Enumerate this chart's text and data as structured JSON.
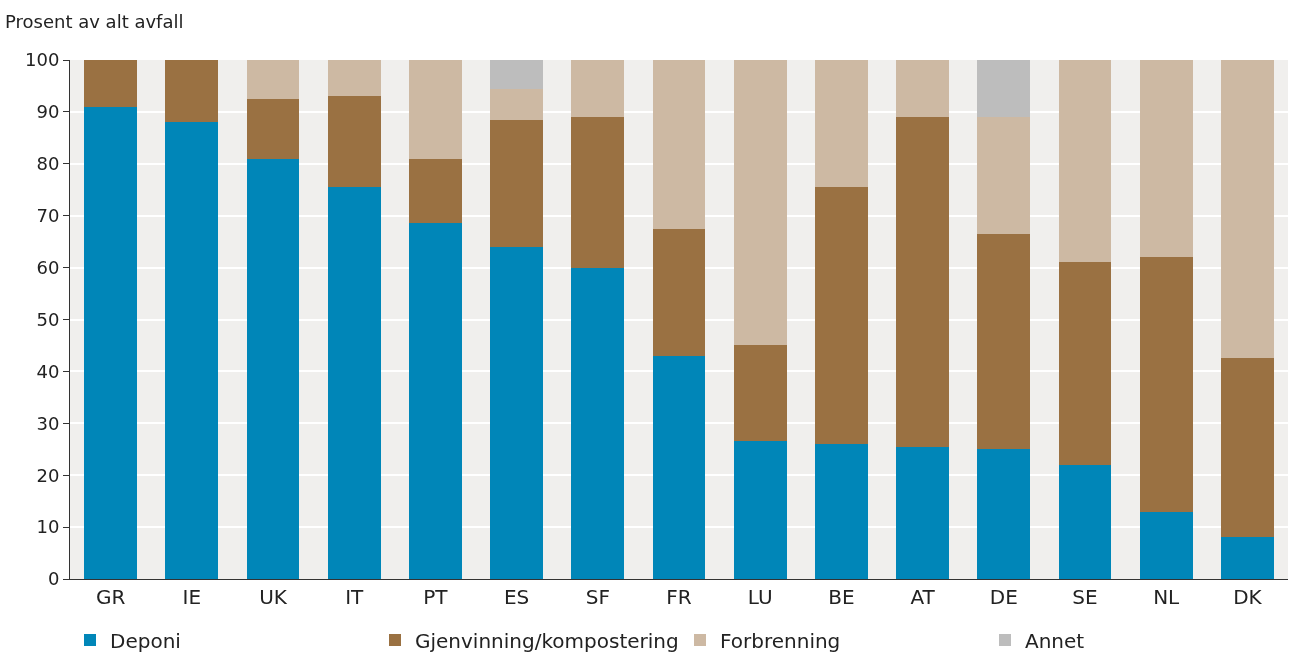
{
  "chart_data": {
    "type": "bar",
    "stacked": true,
    "ylabel": "Prosent av alt avfall",
    "categories": [
      "GR",
      "IE",
      "UK",
      "IT",
      "PT",
      "ES",
      "SF",
      "FR",
      "LU",
      "BE",
      "AT",
      "DE",
      "SE",
      "NL",
      "DK"
    ],
    "series": [
      {
        "name": "Deponi",
        "color": "#0086b8",
        "values": [
          91,
          88,
          81,
          75.5,
          68.5,
          64,
          60,
          43,
          26.5,
          26,
          25.5,
          25,
          22,
          13,
          8
        ]
      },
      {
        "name": "Gjenvinning/kompostering",
        "color": "#9a7142",
        "values": [
          9,
          12,
          11.5,
          17.5,
          12.5,
          24.5,
          29,
          24.5,
          18.5,
          49.5,
          63.5,
          41.5,
          39,
          49,
          34.5
        ]
      },
      {
        "name": "Forbrenning",
        "color": "#cdb9a3",
        "values": [
          0,
          0,
          7.5,
          7,
          19,
          6,
          11,
          32.5,
          55,
          24.5,
          11,
          22.5,
          39,
          38,
          57.5
        ]
      },
      {
        "name": "Annet",
        "color": "#bdbdbd",
        "values": [
          0,
          0,
          0,
          0,
          0,
          5.5,
          0,
          0,
          0,
          0,
          0,
          11,
          0,
          0,
          0
        ]
      }
    ],
    "ylim": [
      0,
      100
    ],
    "yticks": [
      0,
      10,
      20,
      30,
      40,
      50,
      60,
      70,
      80,
      90,
      100
    ],
    "grid": "y",
    "legend": "bottom"
  }
}
